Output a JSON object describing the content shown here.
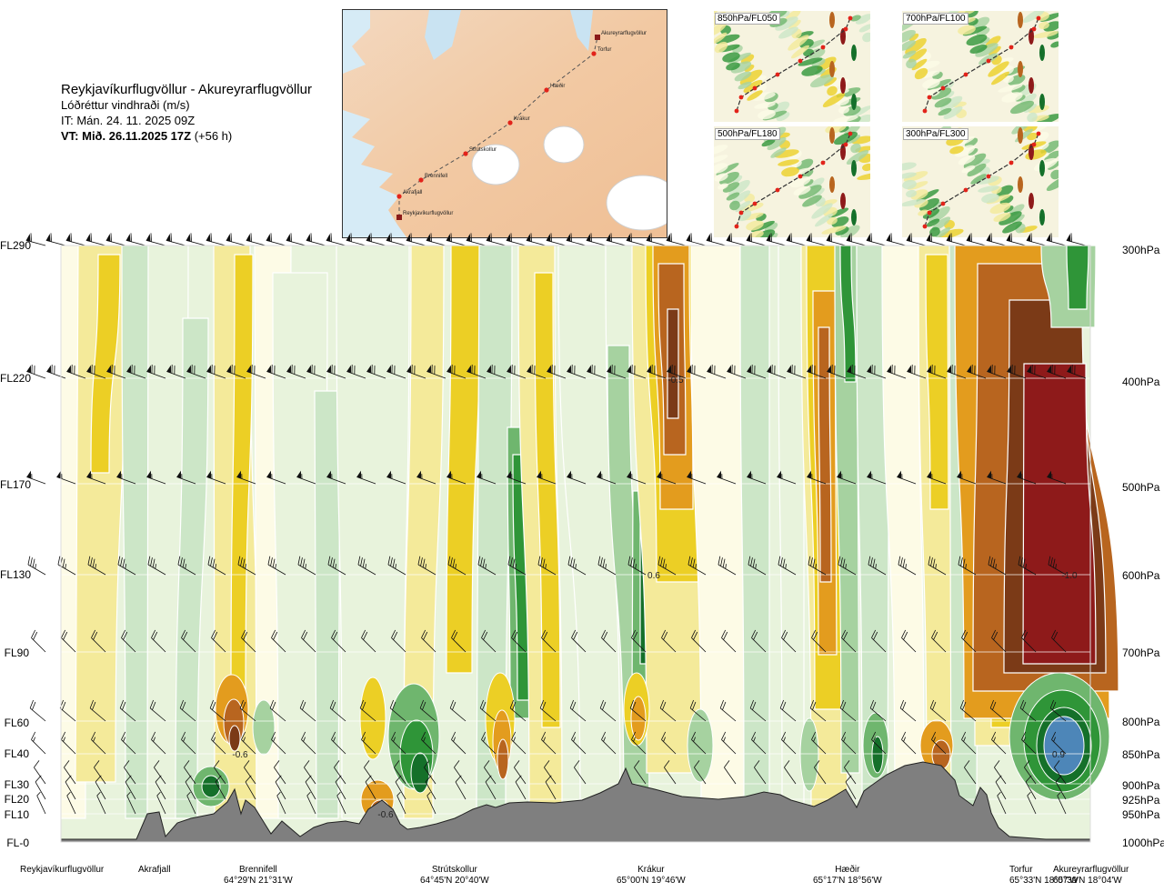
{
  "header": {
    "title": "Reykjavíkurflugvöllur - Akureyrarflugvöllur",
    "subtitle": "Lóðréttur vindhraði (m/s)",
    "issue_time": "IT: Mán. 24. 11. 2025 09Z",
    "valid_time_bold": "VT: Mið. 26.11.2025 17Z",
    "valid_offset": " (+56 h)"
  },
  "map": {
    "route_points": [
      "Reykjavíkurflugvöllur",
      "Akrafjall",
      "Brennifell",
      "Strútskollur",
      "Krákur",
      "Hæðir",
      "Torfur",
      "Akureyrarflugvöllur"
    ]
  },
  "thumbnails": [
    {
      "label": "850hPa/FL050"
    },
    {
      "label": "700hPa/FL100"
    },
    {
      "label": "500hPa/FL180"
    },
    {
      "label": "300hPa/FL300"
    }
  ],
  "chart_data": {
    "type": "heatmap",
    "title": "Reykjavíkurflugvöllur - Akureyrarflugvöllur",
    "quantity": "Lóðréttur vindhraði (m/s)",
    "left_axis_levels": [
      "FL290",
      "FL220",
      "FL170",
      "FL130",
      "FL90",
      "FL60",
      "FL40",
      "FL30",
      "FL20",
      "FL10",
      "FL-0"
    ],
    "right_axis_levels": [
      "300hPa",
      "400hPa",
      "500hPa",
      "600hPa",
      "700hPa",
      "800hPa",
      "850hPa",
      "900hPa",
      "925hPa",
      "950hPa",
      "1000hPa"
    ],
    "pressure_hpa": [
      300,
      400,
      500,
      600,
      700,
      800,
      850,
      900,
      925,
      950,
      1000
    ],
    "waypoints": [
      {
        "name": "Reykjavíkurflugvöllur",
        "coord": ""
      },
      {
        "name": "Akrafjall",
        "coord": ""
      },
      {
        "name": "Brennifell",
        "coord": "64°29'N 21°31'W"
      },
      {
        "name": "Strútskollur",
        "coord": "64°45'N 20°40'W"
      },
      {
        "name": "Krákur",
        "coord": "65°00'N 19°46'W"
      },
      {
        "name": "Hæðir",
        "coord": "65°17'N 18°56'W"
      },
      {
        "name": "Torfur",
        "coord": "65°33'N 18°07'W"
      },
      {
        "name": "Akureyrarflugvöllur",
        "coord": "65°39'N 18°04'W"
      }
    ],
    "value_annotations": [
      "-0.6",
      "-0.6",
      "-0.5",
      "0.6",
      "-1.0",
      "0.9"
    ],
    "grid": true,
    "colors": {
      "strong_sink": "#8e1a1a",
      "sink_4": "#7b3a17",
      "sink_3": "#b8651f",
      "sink_2": "#e39c1e",
      "sink_1": "#eccf25",
      "sink_0": "#f4ea9a",
      "neutral": "#fdfbe6",
      "rise_0": "#e8f3dc",
      "rise_1": "#cce6c7",
      "rise_2": "#a6d2a0",
      "rise_3": "#6fb66e",
      "rise_4": "#2f9538",
      "rise_5": "#15702a",
      "strong_rise": "#4d86b8",
      "terrain": "#7f7f7f"
    }
  }
}
